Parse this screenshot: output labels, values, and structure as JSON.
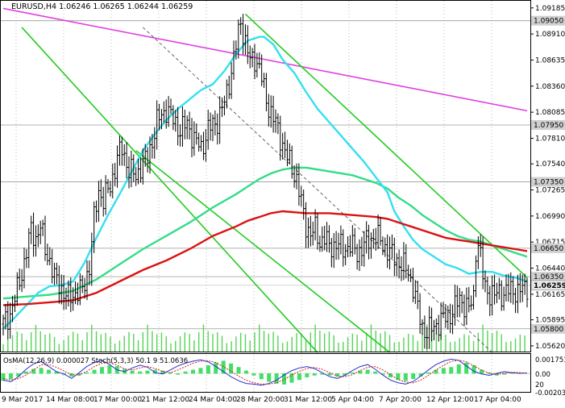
{
  "chart_data": {
    "type": "candlestick",
    "header": {
      "symbol": "EURUSD,H4",
      "open": "1.06246",
      "high": "1.06265",
      "low": "1.06244",
      "close": "1.06259"
    },
    "y_ticks": [
      "1.09185",
      "1.08910",
      "1.08635",
      "1.08360",
      "1.08085",
      "1.07810",
      "1.07540",
      "1.07265",
      "1.06990",
      "1.06715",
      "1.06440",
      "1.06165",
      "1.05895",
      "1.05620"
    ],
    "ylim": [
      1.0556,
      1.0926
    ],
    "x_ticks": [
      "9 Mar 2017",
      "14 Mar 08:00",
      "17 Mar 00:00",
      "21 Mar 12:00",
      "24 Mar 04:00",
      "28 Mar 20:00",
      "31 Mar 12:00",
      "5 Apr 04:00",
      "7 Apr 20:00",
      "12 Apr 12:00",
      "17 Apr 04:00"
    ],
    "levels": [
      {
        "value": 1.0905,
        "label": "1.09050"
      },
      {
        "value": 1.0795,
        "label": "1.07950"
      },
      {
        "value": 1.0735,
        "label": "1.07350"
      },
      {
        "value": 1.0665,
        "label": "1.06650"
      },
      {
        "value": 1.0635,
        "label": "1.06350"
      },
      {
        "value": 1.058,
        "label": "1.05800"
      }
    ],
    "current_price": {
      "value": 1.06259,
      "label": "1.06259"
    },
    "close_path": [
      [
        0,
        1.0585
      ],
      [
        3,
        1.0596
      ],
      [
        6,
        1.062
      ],
      [
        9,
        1.065
      ],
      [
        12,
        1.0684
      ],
      [
        14,
        1.0676
      ],
      [
        16,
        1.0688
      ],
      [
        18,
        1.0664
      ],
      [
        20,
        1.0652
      ],
      [
        22,
        1.0633
      ],
      [
        24,
        1.0628
      ],
      [
        26,
        1.0618
      ],
      [
        28,
        1.0612
      ],
      [
        31,
        1.0618
      ],
      [
        34,
        1.062
      ],
      [
        37,
        1.0646
      ],
      [
        39,
        1.0695
      ],
      [
        41,
        1.0726
      ],
      [
        43,
        1.0716
      ],
      [
        46,
        1.073
      ],
      [
        49,
        1.076
      ],
      [
        51,
        1.077
      ],
      [
        54,
        1.0748
      ],
      [
        57,
        1.074
      ],
      [
        59,
        1.0752
      ],
      [
        62,
        1.076
      ],
      [
        66,
        1.0798
      ],
      [
        70,
        1.0812
      ],
      [
        73,
        1.08
      ],
      [
        76,
        1.079
      ],
      [
        79,
        1.0796
      ],
      [
        82,
        1.078
      ],
      [
        85,
        1.077
      ],
      [
        88,
        1.079
      ],
      [
        92,
        1.08
      ],
      [
        95,
        1.0818
      ],
      [
        98,
        1.0852
      ],
      [
        100,
        1.0878
      ],
      [
        102,
        1.0905
      ],
      [
        104,
        1.0882
      ],
      [
        106,
        1.0862
      ],
      [
        108,
        1.0866
      ],
      [
        110,
        1.0855
      ],
      [
        112,
        1.0832
      ],
      [
        114,
        1.0814
      ],
      [
        116,
        1.0802
      ],
      [
        118,
        1.079
      ],
      [
        120,
        1.0775
      ],
      [
        122,
        1.076
      ],
      [
        124,
        1.075
      ],
      [
        126,
        1.0738
      ],
      [
        128,
        1.0712
      ],
      [
        130,
        1.069
      ],
      [
        132,
        1.068
      ],
      [
        134,
        1.0684
      ],
      [
        136,
        1.0672
      ],
      [
        138,
        1.0676
      ],
      [
        140,
        1.0666
      ],
      [
        143,
        1.067
      ],
      [
        146,
        1.0664
      ],
      [
        149,
        1.0668
      ],
      [
        152,
        1.066
      ],
      [
        155,
        1.0668
      ],
      [
        158,
        1.0676
      ],
      [
        160,
        1.0678
      ],
      [
        162,
        1.0672
      ],
      [
        164,
        1.0666
      ],
      [
        166,
        1.066
      ],
      [
        168,
        1.0655
      ],
      [
        171,
        1.0648
      ],
      [
        174,
        1.064
      ],
      [
        176,
        1.0625
      ],
      [
        178,
        1.06
      ],
      [
        180,
        1.0582
      ],
      [
        182,
        1.0576
      ],
      [
        184,
        1.058
      ],
      [
        186,
        1.0585
      ],
      [
        188,
        1.0588
      ],
      [
        190,
        1.0592
      ],
      [
        192,
        1.0596
      ],
      [
        194,
        1.0602
      ],
      [
        196,
        1.0612
      ],
      [
        198,
        1.0606
      ],
      [
        200,
        1.06
      ],
      [
        202,
        1.0614
      ],
      [
        203,
        1.0664
      ],
      [
        204,
        1.067
      ],
      [
        205,
        1.0655
      ],
      [
        206,
        1.0636
      ],
      [
        207,
        1.0624
      ],
      [
        209,
        1.0618
      ],
      [
        211,
        1.0614
      ],
      [
        213,
        1.062
      ],
      [
        215,
        1.0616
      ],
      [
        217,
        1.062
      ],
      [
        219,
        1.0622
      ],
      [
        221,
        1.0618
      ],
      [
        223,
        1.0622
      ],
      [
        225,
        1.06259
      ]
    ],
    "ma_fast_cyan": [
      [
        0,
        1.058
      ],
      [
        5,
        1.0592
      ],
      [
        10,
        1.0605
      ],
      [
        15,
        1.0618
      ],
      [
        20,
        1.0625
      ],
      [
        25,
        1.0626
      ],
      [
        30,
        1.063
      ],
      [
        35,
        1.065
      ],
      [
        40,
        1.0676
      ],
      [
        45,
        1.07
      ],
      [
        50,
        1.0722
      ],
      [
        55,
        1.0745
      ],
      [
        60,
        1.0768
      ],
      [
        65,
        1.0785
      ],
      [
        70,
        1.08
      ],
      [
        75,
        1.0812
      ],
      [
        80,
        1.0822
      ],
      [
        85,
        1.0832
      ],
      [
        90,
        1.0838
      ],
      [
        95,
        1.0852
      ],
      [
        100,
        1.087
      ],
      [
        105,
        1.0884
      ],
      [
        110,
        1.0888
      ],
      [
        112,
        1.0888
      ],
      [
        116,
        1.088
      ],
      [
        120,
        1.0864
      ],
      [
        125,
        1.085
      ],
      [
        130,
        1.083
      ],
      [
        135,
        1.0812
      ],
      [
        140,
        1.0798
      ],
      [
        145,
        1.0784
      ],
      [
        150,
        1.077
      ],
      [
        155,
        1.0756
      ],
      [
        160,
        1.074
      ],
      [
        165,
        1.0724
      ],
      [
        168,
        1.0704
      ],
      [
        172,
        1.0688
      ],
      [
        176,
        1.0674
      ],
      [
        180,
        1.0664
      ],
      [
        185,
        1.0656
      ],
      [
        190,
        1.0648
      ],
      [
        195,
        1.0644
      ],
      [
        200,
        1.0638
      ],
      [
        205,
        1.064
      ],
      [
        210,
        1.064
      ],
      [
        215,
        1.0636
      ],
      [
        220,
        1.0634
      ],
      [
        225,
        1.063
      ]
    ],
    "ma_mid_green": [
      [
        0,
        1.0612
      ],
      [
        10,
        1.0614
      ],
      [
        20,
        1.0616
      ],
      [
        30,
        1.062
      ],
      [
        40,
        1.0632
      ],
      [
        50,
        1.0648
      ],
      [
        60,
        1.0664
      ],
      [
        70,
        1.0678
      ],
      [
        80,
        1.0692
      ],
      [
        90,
        1.0708
      ],
      [
        100,
        1.0722
      ],
      [
        105,
        1.073
      ],
      [
        110,
        1.0738
      ],
      [
        115,
        1.0744
      ],
      [
        120,
        1.0748
      ],
      [
        125,
        1.075
      ],
      [
        130,
        1.075
      ],
      [
        140,
        1.0746
      ],
      [
        150,
        1.0742
      ],
      [
        160,
        1.0734
      ],
      [
        165,
        1.0728
      ],
      [
        170,
        1.0718
      ],
      [
        175,
        1.071
      ],
      [
        180,
        1.07
      ],
      [
        185,
        1.0692
      ],
      [
        190,
        1.0684
      ],
      [
        195,
        1.0678
      ],
      [
        200,
        1.0674
      ],
      [
        205,
        1.0672
      ],
      [
        210,
        1.0668
      ],
      [
        215,
        1.0664
      ],
      [
        220,
        1.066
      ],
      [
        225,
        1.0656
      ]
    ],
    "ma_slow_red": [
      [
        0,
        1.0605
      ],
      [
        10,
        1.0606
      ],
      [
        20,
        1.0608
      ],
      [
        30,
        1.061
      ],
      [
        40,
        1.0618
      ],
      [
        50,
        1.063
      ],
      [
        60,
        1.0642
      ],
      [
        70,
        1.0652
      ],
      [
        80,
        1.0664
      ],
      [
        90,
        1.0678
      ],
      [
        100,
        1.0688
      ],
      [
        105,
        1.0694
      ],
      [
        110,
        1.0698
      ],
      [
        115,
        1.0702
      ],
      [
        120,
        1.0704
      ],
      [
        130,
        1.0702
      ],
      [
        140,
        1.0702
      ],
      [
        150,
        1.07
      ],
      [
        160,
        1.0698
      ],
      [
        165,
        1.0696
      ],
      [
        170,
        1.0692
      ],
      [
        175,
        1.0688
      ],
      [
        180,
        1.0684
      ],
      [
        185,
        1.068
      ],
      [
        190,
        1.0676
      ],
      [
        195,
        1.0674
      ],
      [
        200,
        1.0672
      ],
      [
        205,
        1.067
      ],
      [
        210,
        1.0668
      ],
      [
        215,
        1.0666
      ],
      [
        220,
        1.0664
      ],
      [
        225,
        1.0662
      ]
    ],
    "channel_lines": [
      {
        "name": "magenta",
        "points": [
          [
            0,
            1.0918
          ],
          [
            225,
            1.081
          ]
        ]
      },
      {
        "name": "green-a",
        "points": [
          [
            8,
            1.0898
          ],
          [
            135,
            1.0555
          ]
        ]
      },
      {
        "name": "green-b",
        "points": [
          [
            57,
            1.0768
          ],
          [
            166,
            1.0555
          ]
        ]
      },
      {
        "name": "green-c",
        "points": [
          [
            104,
            1.0912
          ],
          [
            225,
            1.0634
          ]
        ]
      },
      {
        "name": "dashed",
        "points": [
          [
            60,
            1.0898
          ],
          [
            210,
            1.0555
          ]
        ]
      }
    ],
    "volume_levels": [
      0.35,
      0.5,
      0.45,
      0.3,
      0.55,
      0.4,
      0.6,
      0.35,
      0.5,
      0.45,
      0.3,
      0.6,
      0.5,
      0.4,
      0.7,
      0.45,
      0.55,
      0.35,
      0.5,
      0.4,
      0.6,
      0.3,
      0.55,
      0.45
    ],
    "oscillator": {
      "label": "OsMA(12,26,9) 0.000027  Stoch(5,3,3) 50.1 9 51.0636",
      "ticks": [
        "0.001751",
        "0.00",
        "20",
        "-0.002031"
      ],
      "histogram": [
        -0.0008,
        -0.0006,
        -0.0003,
        0.0002,
        0.0005,
        0.0006,
        0.0004,
        0.0002,
        -0.0001,
        -0.0003,
        -0.0002,
        0.0001,
        0.0004,
        0.0007,
        0.0009,
        0.0008,
        0.0005,
        0.0003,
        0.0002,
        0.0003,
        0.0004,
        0.0003,
        0.0001,
        -0.0001,
        0.0002,
        0.0004,
        0.0006,
        0.0009,
        0.0012,
        0.0014,
        0.0011,
        0.0007,
        0.0003,
        -0.0002,
        -0.0006,
        -0.0009,
        -0.0011,
        -0.0012,
        -0.001,
        -0.0007,
        -0.0004,
        -0.0002,
        -0.0001,
        -0.0002,
        -0.0003,
        -0.0002,
        0.0001,
        0.0003,
        0.0004,
        0.0002,
        -0.0001,
        -0.0004,
        -0.0007,
        -0.0008,
        -0.0006,
        -0.0003,
        0.0001,
        0.0004,
        0.0006,
        0.0007,
        0.001,
        0.0012,
        0.0009,
        0.0004,
        0.0001,
        -0.0002,
        -0.0001,
        0.0001,
        0.0,
        0.0
      ],
      "stoch_k": [
        30,
        25,
        40,
        62,
        78,
        85,
        70,
        55,
        48,
        35,
        52,
        70,
        82,
        88,
        76,
        60,
        55,
        66,
        74,
        68,
        52,
        48,
        60,
        72,
        80,
        86,
        90,
        84,
        70,
        55,
        40,
        28,
        20,
        18,
        15,
        20,
        30,
        45,
        58,
        66,
        70,
        64,
        52,
        40,
        35,
        44,
        58,
        70,
        76,
        62,
        45,
        30,
        22,
        18,
        26,
        42,
        60,
        76,
        86,
        92,
        88,
        72,
        56,
        48,
        44,
        50,
        55,
        52,
        50,
        51
      ],
      "stoch_d": [
        35,
        30,
        34,
        45,
        60,
        75,
        76,
        68,
        57,
        46,
        45,
        56,
        70,
        80,
        82,
        74,
        63,
        60,
        66,
        70,
        64,
        56,
        52,
        60,
        70,
        80,
        86,
        87,
        82,
        70,
        56,
        42,
        30,
        22,
        18,
        18,
        22,
        32,
        45,
        56,
        64,
        67,
        62,
        52,
        42,
        40,
        46,
        58,
        68,
        70,
        60,
        46,
        32,
        24,
        22,
        30,
        44,
        60,
        74,
        85,
        89,
        84,
        72,
        60,
        50,
        47,
        50,
        53,
        52,
        51
      ]
    }
  }
}
